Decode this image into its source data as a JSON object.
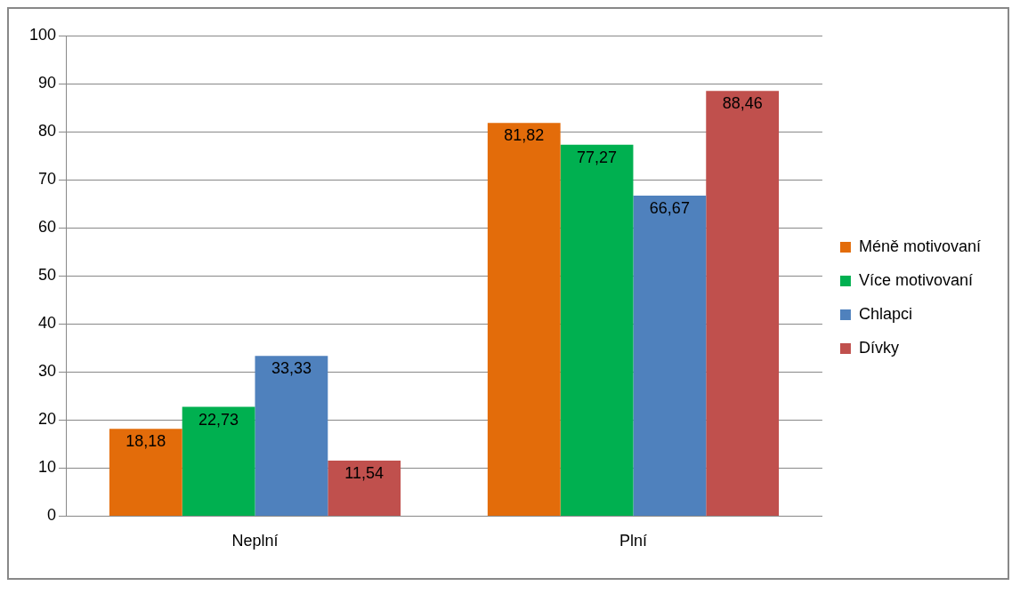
{
  "chart_data": {
    "type": "bar",
    "categories": [
      "Neplní",
      "Plní"
    ],
    "series": [
      {
        "name": "Méně motivovaní",
        "color": "#e36c0a",
        "values": [
          18.18,
          81.82
        ],
        "value_labels": [
          "18,18",
          "81,82"
        ]
      },
      {
        "name": "Více motivovaní",
        "color": "#00b050",
        "values": [
          22.73,
          77.27
        ],
        "value_labels": [
          "22,73",
          "77,27"
        ]
      },
      {
        "name": "Chlapci",
        "color": "#4f81bd",
        "values": [
          33.33,
          66.67
        ],
        "value_labels": [
          "33,33",
          "66,67"
        ]
      },
      {
        "name": "Dívky",
        "color": "#c0504d",
        "values": [
          11.54,
          88.46
        ],
        "value_labels": [
          "11,54",
          "88,46"
        ]
      }
    ],
    "ylim": [
      0,
      100
    ],
    "yticks": [
      0,
      10,
      20,
      30,
      40,
      50,
      60,
      70,
      80,
      90,
      100
    ],
    "grid": "y",
    "legend": "right"
  }
}
